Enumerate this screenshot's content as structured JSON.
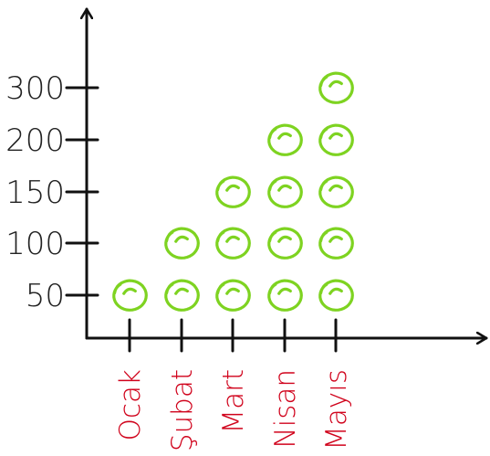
{
  "chart_data": {
    "type": "pictograph",
    "title": "",
    "xlabel": "",
    "ylabel": "",
    "categories": [
      "Ocak",
      "Şubat",
      "Mart",
      "Nisan",
      "Mayıs"
    ],
    "y_ticks": [
      "50",
      "100",
      "150",
      "200",
      "300"
    ],
    "values": [
      50,
      100,
      150,
      200,
      300
    ],
    "symbol_counts": [
      1,
      2,
      3,
      4,
      5
    ],
    "ylim": [
      0,
      300
    ],
    "grid": false,
    "legend": "none",
    "colors": {
      "marker": "#7ED321",
      "category_label": "#D0021B",
      "axis": "#111111",
      "tick_label": "#222222"
    }
  }
}
